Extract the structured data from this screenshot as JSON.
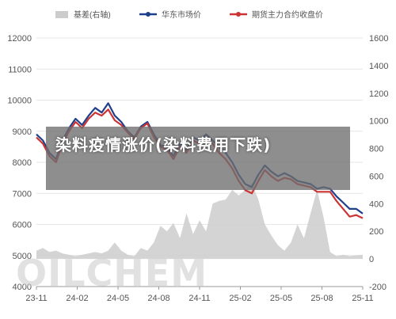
{
  "headline": "染料疫情涨价(染料费用下跌)",
  "watermark": "OILCHEM",
  "colors": {
    "basis": "#cccccc",
    "east_price": "#1f3f8a",
    "futures": "#cc3333",
    "grid": "#e6e6e6",
    "axis_text": "#555555"
  },
  "chart_data": {
    "type": "line",
    "legend": {
      "placement": "top",
      "entries": [
        "基差(右轴)",
        "华东市场价",
        "期货主力合约收盘价"
      ]
    },
    "x_ticks": [
      "23-11",
      "24-02",
      "24-05",
      "24-08",
      "24-11",
      "25-02",
      "25-05",
      "25-08",
      "25-11"
    ],
    "y_left": {
      "ticks": [
        4000,
        5000,
        6000,
        7000,
        8000,
        9000,
        10000,
        11000,
        12000
      ],
      "lim": [
        4000,
        12000
      ]
    },
    "y_right": {
      "ticks": [
        -200,
        0,
        200,
        400,
        600,
        800,
        1000,
        1200,
        1400,
        1600
      ],
      "lim": [
        -200,
        1600
      ]
    },
    "grid": true,
    "series": [
      {
        "name": "基差(右轴)",
        "kind": "area",
        "axis": "right",
        "x": [
          0,
          2,
          4,
          6,
          8,
          10,
          12,
          14,
          16,
          18,
          20,
          22,
          24,
          26,
          28,
          30,
          32,
          34,
          36,
          38,
          40,
          42,
          44,
          46,
          48,
          50,
          52,
          54,
          56,
          58,
          60,
          62,
          64,
          66,
          68,
          70,
          72,
          74,
          76,
          78,
          80,
          82,
          84,
          86,
          88,
          90,
          92,
          94,
          96,
          100
        ],
        "values": [
          60,
          80,
          50,
          60,
          40,
          30,
          20,
          30,
          40,
          50,
          40,
          60,
          120,
          60,
          30,
          20,
          80,
          60,
          120,
          240,
          200,
          260,
          150,
          330,
          180,
          280,
          200,
          400,
          420,
          430,
          500,
          460,
          500,
          550,
          430,
          250,
          170,
          100,
          60,
          120,
          250,
          150,
          330,
          500,
          300,
          50,
          20,
          30,
          20,
          30
        ]
      },
      {
        "name": "华东市场价",
        "kind": "line",
        "axis": "left",
        "x": [
          0,
          2,
          4,
          6,
          8,
          10,
          12,
          14,
          16,
          18,
          20,
          22,
          24,
          26,
          28,
          30,
          32,
          34,
          36,
          38,
          40,
          42,
          44,
          46,
          48,
          50,
          52,
          54,
          56,
          58,
          60,
          62,
          64,
          66,
          68,
          70,
          72,
          74,
          76,
          78,
          80,
          82,
          84,
          86,
          88,
          90,
          92,
          94,
          96,
          98,
          100
        ],
        "values": [
          8900,
          8700,
          8300,
          8100,
          8700,
          9100,
          9400,
          9200,
          9500,
          9750,
          9600,
          9900,
          9500,
          9300,
          9000,
          8800,
          9150,
          9300,
          8900,
          8550,
          8500,
          8200,
          8600,
          8400,
          8800,
          8700,
          8900,
          8700,
          8500,
          8300,
          8000,
          7600,
          7300,
          7200,
          7600,
          7900,
          7700,
          7550,
          7650,
          7550,
          7400,
          7350,
          7300,
          7150,
          7200,
          7150,
          6900,
          6700,
          6500,
          6500,
          6350
        ]
      },
      {
        "name": "期货主力合约收盘价",
        "kind": "line",
        "axis": "left",
        "x": [
          0,
          2,
          4,
          6,
          8,
          10,
          12,
          14,
          16,
          18,
          20,
          22,
          24,
          26,
          28,
          30,
          32,
          34,
          36,
          38,
          40,
          42,
          44,
          46,
          48,
          50,
          52,
          54,
          56,
          58,
          60,
          62,
          64,
          66,
          68,
          70,
          72,
          74,
          76,
          78,
          80,
          82,
          84,
          86,
          88,
          90,
          92,
          94,
          96,
          98,
          100
        ],
        "values": [
          8800,
          8600,
          8200,
          8000,
          8600,
          9000,
          9300,
          9100,
          9400,
          9600,
          9500,
          9700,
          9350,
          9200,
          8950,
          8750,
          9100,
          9250,
          8800,
          8500,
          8400,
          8100,
          8500,
          8300,
          8700,
          8600,
          8800,
          8600,
          8300,
          8100,
          7800,
          7400,
          7100,
          7000,
          7400,
          7750,
          7550,
          7400,
          7500,
          7450,
          7300,
          7250,
          7200,
          7050,
          7050,
          7050,
          6750,
          6500,
          6250,
          6300,
          6200
        ]
      }
    ]
  }
}
